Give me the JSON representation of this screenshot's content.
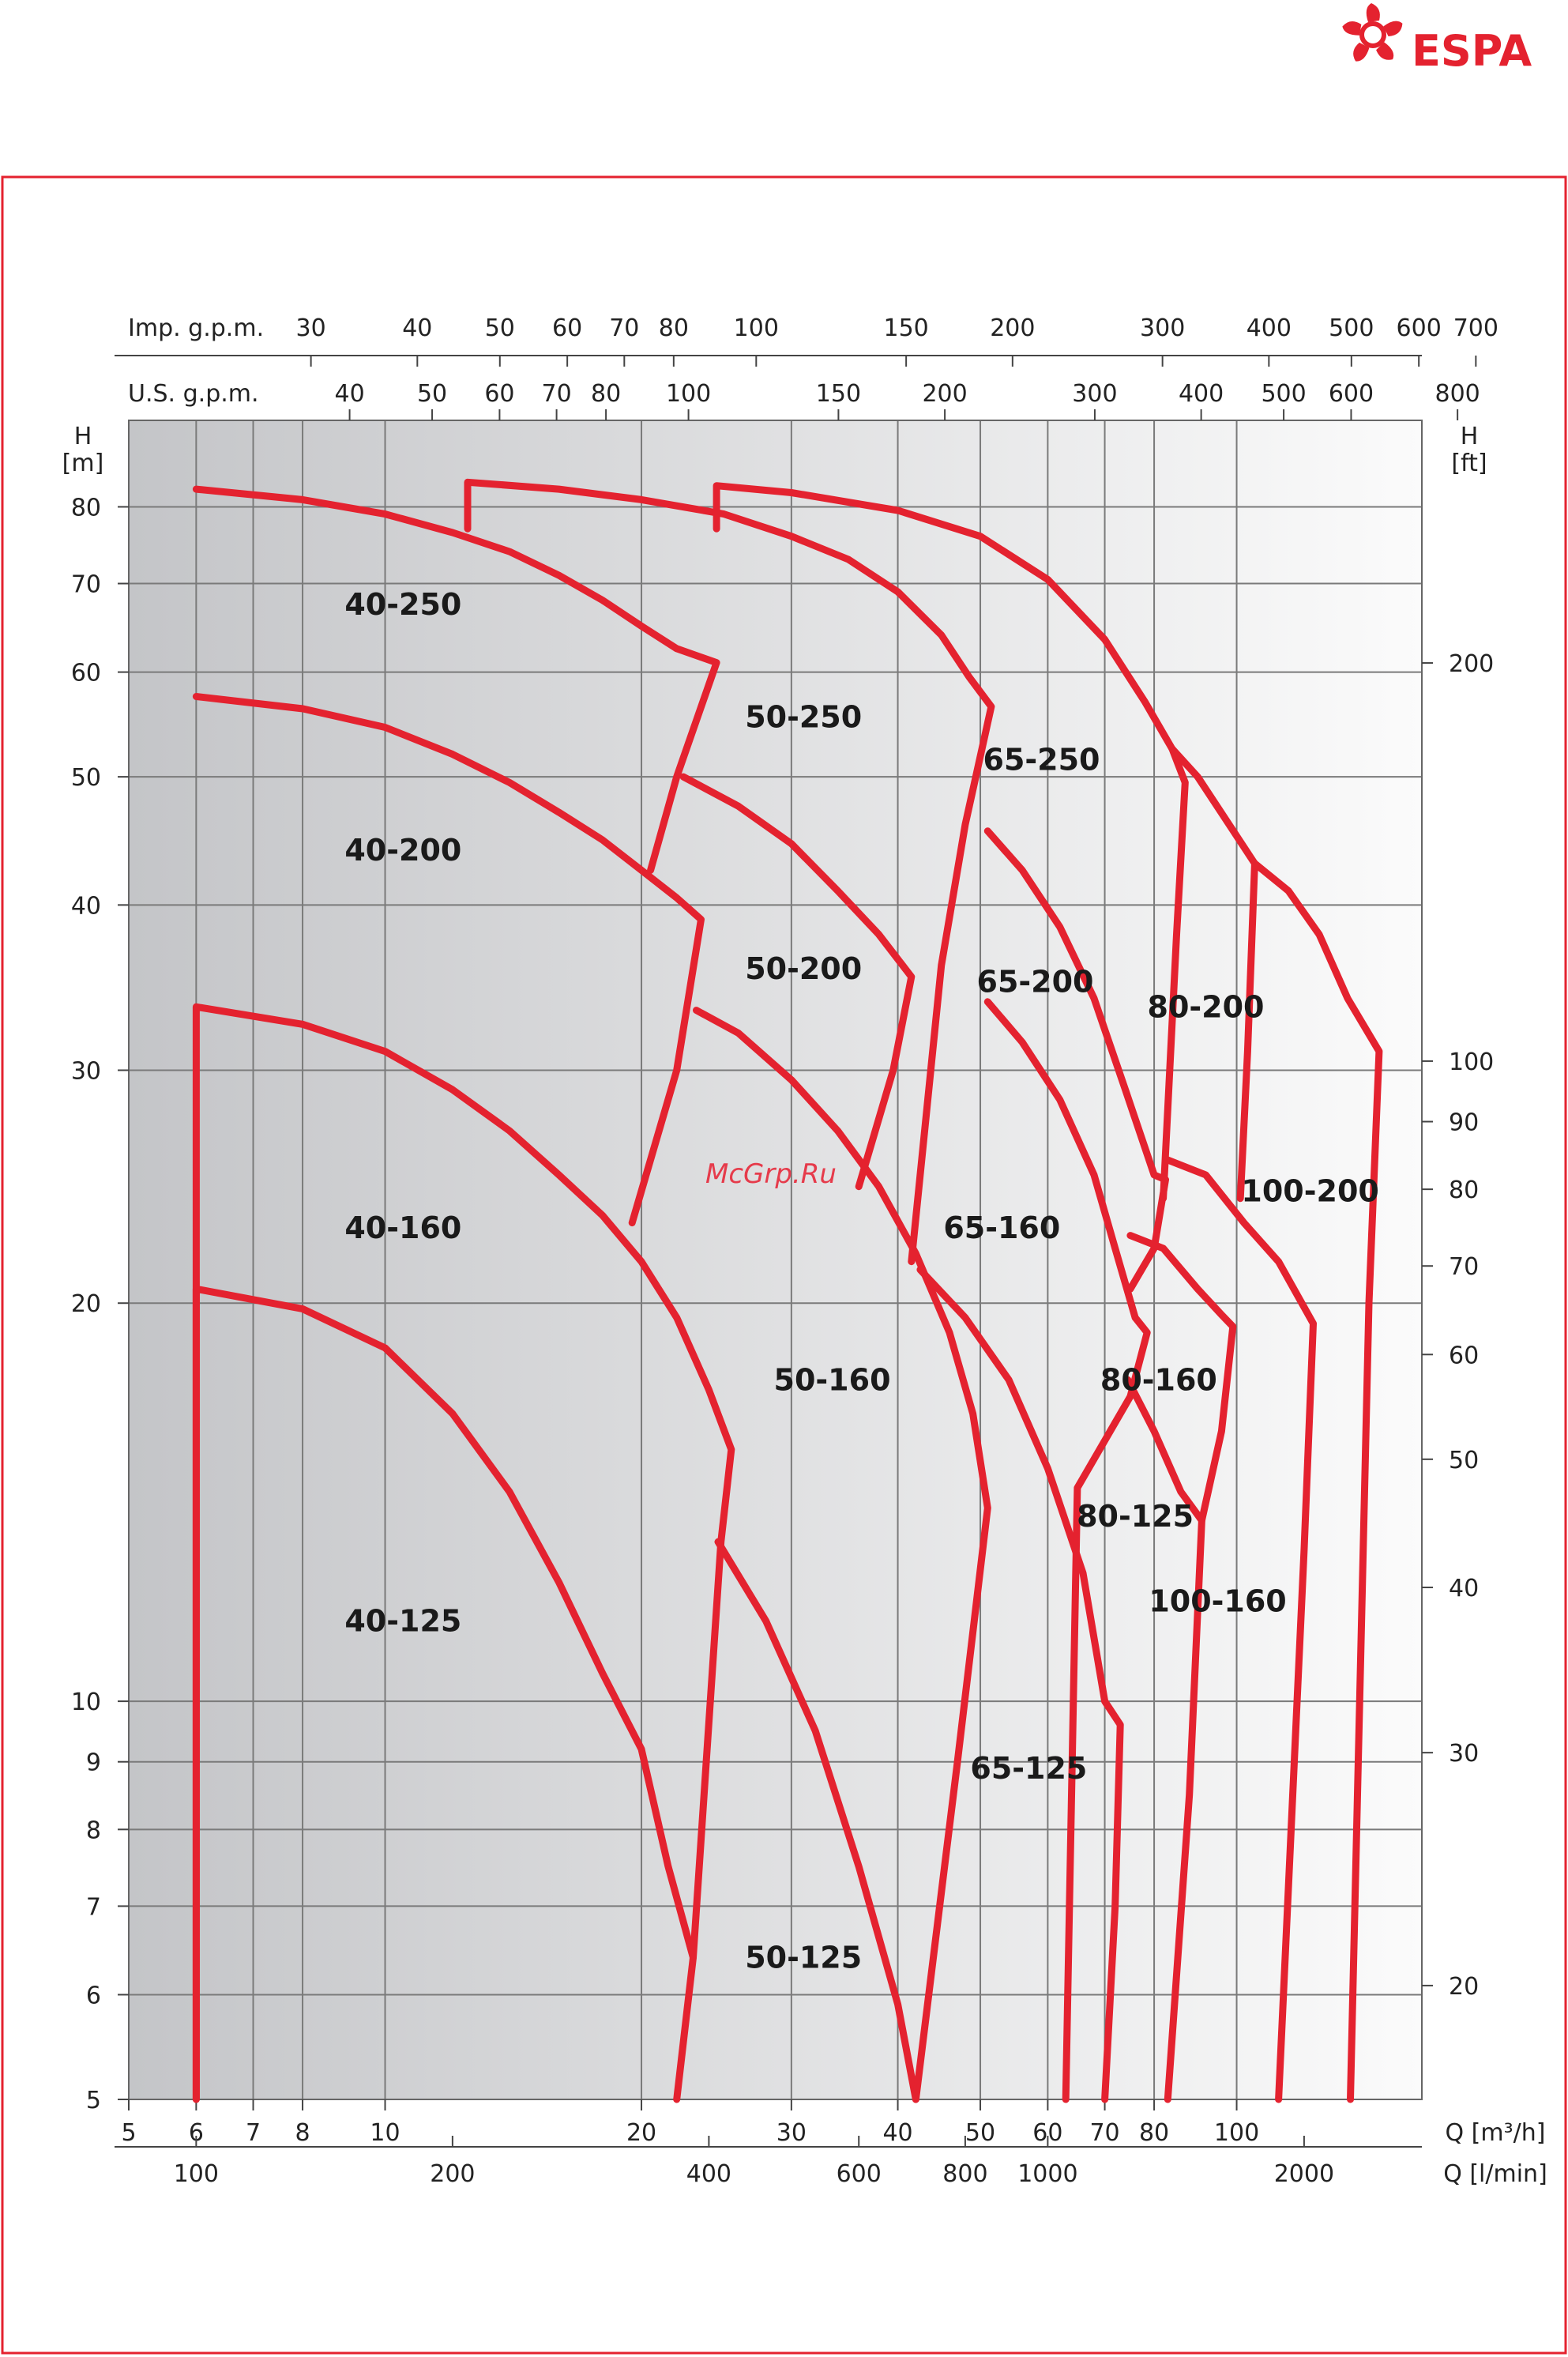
{
  "brand": {
    "name": "ESPA",
    "color": "#e4222f"
  },
  "watermark": "McGrp.Ru",
  "chart_data": {
    "type": "line",
    "title": "",
    "x_axis": {
      "label": "Q [m³/h]",
      "scale": "log",
      "range": [
        5,
        165
      ],
      "ticks": [
        {
          "v": 5,
          "l": "5"
        },
        {
          "v": 6,
          "l": "6"
        },
        {
          "v": 7,
          "l": "7"
        },
        {
          "v": 8,
          "l": "8"
        },
        {
          "v": 10,
          "l": "10"
        },
        {
          "v": 20,
          "l": "20"
        },
        {
          "v": 30,
          "l": "30"
        },
        {
          "v": 40,
          "l": "40"
        },
        {
          "v": 50,
          "l": "50"
        },
        {
          "v": 60,
          "l": "60"
        },
        {
          "v": 70,
          "l": "70"
        },
        {
          "v": 80,
          "l": "80"
        },
        {
          "v": 100,
          "l": "100"
        }
      ]
    },
    "x_axis_lmin": {
      "label": "Q [l/min]",
      "factor": 16.6667,
      "ticks": [
        {
          "v": 100,
          "l": "100"
        },
        {
          "v": 200,
          "l": "200"
        },
        {
          "v": 400,
          "l": "400"
        },
        {
          "v": 600,
          "l": "600"
        },
        {
          "v": 800,
          "l": "800"
        },
        {
          "v": 1000,
          "l": "1000"
        },
        {
          "v": 2000,
          "l": "2000"
        }
      ]
    },
    "x_axis_us": {
      "label": "U.S. g.p.m.",
      "factor": 4.4029,
      "ticks": [
        {
          "v": 40,
          "l": "40"
        },
        {
          "v": 50,
          "l": "50"
        },
        {
          "v": 60,
          "l": "60"
        },
        {
          "v": 70,
          "l": "70"
        },
        {
          "v": 80,
          "l": "80"
        },
        {
          "v": 100,
          "l": "100"
        },
        {
          "v": 150,
          "l": "150"
        },
        {
          "v": 200,
          "l": "200"
        },
        {
          "v": 300,
          "l": "300"
        },
        {
          "v": 400,
          "l": "400"
        },
        {
          "v": 500,
          "l": "500"
        },
        {
          "v": 600,
          "l": "600"
        },
        {
          "v": 800,
          "l": "800"
        }
      ]
    },
    "x_axis_imp": {
      "label": "Imp. g.p.m.",
      "factor": 3.6662,
      "ticks": [
        {
          "v": 30,
          "l": "30"
        },
        {
          "v": 40,
          "l": "40"
        },
        {
          "v": 50,
          "l": "50"
        },
        {
          "v": 60,
          "l": "60"
        },
        {
          "v": 70,
          "l": "70"
        },
        {
          "v": 80,
          "l": "80"
        },
        {
          "v": 100,
          "l": "100"
        },
        {
          "v": 150,
          "l": "150"
        },
        {
          "v": 200,
          "l": "200"
        },
        {
          "v": 300,
          "l": "300"
        },
        {
          "v": 400,
          "l": "400"
        },
        {
          "v": 500,
          "l": "500"
        },
        {
          "v": 600,
          "l": "600"
        },
        {
          "v": 700,
          "l": "700"
        }
      ]
    },
    "y_axis": {
      "label": "H [m]",
      "scale": "log",
      "range": [
        5,
        93
      ],
      "ticks": [
        {
          "v": 5,
          "l": "5"
        },
        {
          "v": 6,
          "l": "6"
        },
        {
          "v": 7,
          "l": "7"
        },
        {
          "v": 8,
          "l": "8"
        },
        {
          "v": 9,
          "l": "9"
        },
        {
          "v": 10,
          "l": "10"
        },
        {
          "v": 20,
          "l": "20"
        },
        {
          "v": 30,
          "l": "30"
        },
        {
          "v": 40,
          "l": "40"
        },
        {
          "v": 50,
          "l": "50"
        },
        {
          "v": 60,
          "l": "60"
        },
        {
          "v": 70,
          "l": "70"
        },
        {
          "v": 80,
          "l": "80"
        }
      ]
    },
    "y_axis_ft": {
      "label": "H [ft]",
      "factor": 3.2808,
      "ticks": [
        {
          "v": 20,
          "l": "20"
        },
        {
          "v": 30,
          "l": "30"
        },
        {
          "v": 40,
          "l": "40"
        },
        {
          "v": 50,
          "l": "50"
        },
        {
          "v": 60,
          "l": "60"
        },
        {
          "v": 70,
          "l": "70"
        },
        {
          "v": 80,
          "l": "80"
        },
        {
          "v": 90,
          "l": "90"
        },
        {
          "v": 100,
          "l": "100"
        },
        {
          "v": 200,
          "l": "200"
        }
      ]
    },
    "grid": true,
    "series_color": "#e4222f",
    "series": [
      {
        "name": "40-125",
        "label_at": [
          10.5,
          11.5
        ],
        "points": [
          [
            6,
            5
          ],
          [
            6,
            20.5
          ],
          [
            8,
            19.8
          ],
          [
            10,
            18.5
          ],
          [
            12,
            16.5
          ],
          [
            14,
            14.4
          ],
          [
            16,
            12.3
          ],
          [
            18,
            10.5
          ],
          [
            20,
            9.2
          ],
          [
            21.5,
            7.5
          ],
          [
            23,
            6.4
          ],
          [
            22,
            5
          ]
        ]
      },
      {
        "name": "40-160",
        "label_at": [
          10.5,
          22.8
        ],
        "points": [
          [
            6,
            5
          ],
          [
            6,
            33.5
          ],
          [
            8,
            32.5
          ],
          [
            10,
            31
          ],
          [
            12,
            29
          ],
          [
            14,
            27
          ],
          [
            16,
            25
          ],
          [
            18,
            23.3
          ],
          [
            20,
            21.5
          ],
          [
            22,
            19.5
          ],
          [
            24,
            17.2
          ],
          [
            25.5,
            15.5
          ],
          [
            24.8,
            13.2
          ],
          [
            23,
            6.4
          ]
        ]
      },
      {
        "name": "40-200",
        "label_at": [
          10.5,
          44
        ],
        "points": [
          [
            6,
            57.5
          ],
          [
            8,
            56.3
          ],
          [
            10,
            54.5
          ],
          [
            12,
            52
          ],
          [
            14,
            49.5
          ],
          [
            16,
            47
          ],
          [
            18,
            44.8
          ],
          [
            20,
            42.5
          ],
          [
            22,
            40.5
          ],
          [
            23.5,
            39
          ],
          [
            22,
            30
          ],
          [
            19.5,
            23
          ]
        ]
      },
      {
        "name": "40-250",
        "label_at": [
          10.5,
          67.5
        ],
        "points": [
          [
            6,
            82.5
          ],
          [
            8,
            81
          ],
          [
            10,
            79
          ],
          [
            12,
            76.5
          ],
          [
            14,
            74
          ],
          [
            16,
            71
          ],
          [
            18,
            68
          ],
          [
            20,
            65
          ],
          [
            22,
            62.5
          ],
          [
            24.5,
            61
          ],
          [
            22,
            50
          ],
          [
            20.5,
            42.5
          ]
        ]
      },
      {
        "name": "50-125",
        "label_at": [
          31,
          6.4
        ],
        "points": [
          [
            24.6,
            13.2
          ],
          [
            28,
            11.5
          ],
          [
            32,
            9.5
          ],
          [
            36,
            7.5
          ],
          [
            40,
            5.9
          ],
          [
            42,
            5
          ]
        ]
      },
      {
        "name": "50-160",
        "label_at": [
          33.5,
          17.5
        ],
        "points": [
          [
            23.2,
            33.3
          ],
          [
            26,
            32
          ],
          [
            30,
            29.5
          ],
          [
            34,
            27
          ],
          [
            38,
            24.5
          ],
          [
            42,
            21.8
          ],
          [
            46,
            19
          ],
          [
            49,
            16.5
          ],
          [
            51,
            14
          ],
          [
            47,
            9
          ],
          [
            42,
            5
          ]
        ]
      },
      {
        "name": "50-200",
        "label_at": [
          31,
          35.8
        ],
        "points": [
          [
            22.4,
            50
          ],
          [
            26,
            47.5
          ],
          [
            30,
            44.5
          ],
          [
            34,
            41
          ],
          [
            38,
            38
          ],
          [
            41.5,
            35.3
          ],
          [
            39.5,
            30
          ],
          [
            36,
            24.5
          ]
        ]
      },
      {
        "name": "50-250",
        "label_at": [
          31,
          55.5
        ],
        "points": [
          [
            12.5,
            77
          ],
          [
            12.5,
            83.5
          ],
          [
            16,
            82.5
          ],
          [
            20,
            81
          ],
          [
            25,
            79
          ],
          [
            30,
            76
          ],
          [
            35,
            73
          ],
          [
            40,
            69
          ],
          [
            45,
            64
          ],
          [
            48.5,
            59.5
          ],
          [
            51.5,
            56.5
          ],
          [
            48,
            46
          ],
          [
            45,
            36
          ],
          [
            41.5,
            21.5
          ]
        ]
      },
      {
        "name": "65-125",
        "label_at": [
          57,
          8.9
        ],
        "points": [
          [
            42.5,
            21.2
          ],
          [
            48,
            19.5
          ],
          [
            54,
            17.5
          ],
          [
            60,
            15
          ],
          [
            66,
            12.5
          ],
          [
            70,
            10
          ],
          [
            73,
            9.6
          ],
          [
            72,
            7
          ],
          [
            70,
            5
          ]
        ]
      },
      {
        "name": "65-160",
        "label_at": [
          53,
          22.8
        ],
        "points": [
          [
            51,
            33.8
          ],
          [
            56,
            31.5
          ],
          [
            62,
            28.5
          ],
          [
            68,
            25
          ],
          [
            72,
            22
          ],
          [
            76,
            19.5
          ],
          [
            78.5,
            19
          ],
          [
            75,
            17
          ],
          [
            65,
            14.5
          ],
          [
            63,
            5
          ]
        ]
      },
      {
        "name": "65-200",
        "label_at": [
          58,
          35
        ],
        "points": [
          [
            51,
            45.5
          ],
          [
            56,
            42.5
          ],
          [
            62,
            38.5
          ],
          [
            68,
            34
          ],
          [
            74,
            29
          ],
          [
            80,
            25
          ],
          [
            82.5,
            24.8
          ],
          [
            80,
            22
          ],
          [
            75,
            20.5
          ]
        ]
      },
      {
        "name": "65-250",
        "label_at": [
          59,
          51.5
        ],
        "points": [
          [
            24.5,
            77
          ],
          [
            24.5,
            83
          ],
          [
            30,
            82
          ],
          [
            40,
            79.5
          ],
          [
            50,
            76
          ],
          [
            60,
            70.5
          ],
          [
            70,
            63.5
          ],
          [
            78,
            57
          ],
          [
            84,
            52.5
          ],
          [
            87,
            49.5
          ],
          [
            85,
            38
          ],
          [
            82,
            24
          ]
        ]
      },
      {
        "name": "80-125",
        "label_at": [
          76,
          13.8
        ],
        "points": [
          [
            74.5,
            17.5
          ],
          [
            80,
            16
          ],
          [
            86,
            14.4
          ],
          [
            91,
            13.7
          ],
          [
            88,
            8.5
          ],
          [
            83,
            5
          ]
        ]
      },
      {
        "name": "80-160",
        "label_at": [
          81,
          17.5
        ],
        "points": [
          [
            75,
            22.5
          ],
          [
            82,
            22
          ],
          [
            90,
            20.5
          ],
          [
            96,
            19.6
          ],
          [
            99,
            19.2
          ],
          [
            96,
            16
          ],
          [
            91,
            13.7
          ]
        ]
      },
      {
        "name": "80-200",
        "label_at": [
          92,
          33.5
        ],
        "points": [
          [
            84,
            52.5
          ],
          [
            90,
            50
          ],
          [
            98,
            46
          ],
          [
            105,
            43
          ],
          [
            103,
            31
          ],
          [
            101,
            24
          ]
        ]
      },
      {
        "name": "100-160",
        "label_at": [
          95,
          11.9
        ],
        "points": [
          [
            82.5,
            25.7
          ],
          [
            92,
            25
          ],
          [
            102,
            23
          ],
          [
            112,
            21.5
          ],
          [
            123,
            19.3
          ],
          [
            120,
            13
          ],
          [
            112,
            5
          ]
        ]
      },
      {
        "name": "100-200",
        "label_at": [
          122,
          24.3
        ],
        "points": [
          [
            105,
            43
          ],
          [
            115,
            41
          ],
          [
            125,
            38
          ],
          [
            135,
            34
          ],
          [
            147,
            31
          ],
          [
            143,
            20
          ],
          [
            136,
            5
          ]
        ]
      }
    ]
  }
}
